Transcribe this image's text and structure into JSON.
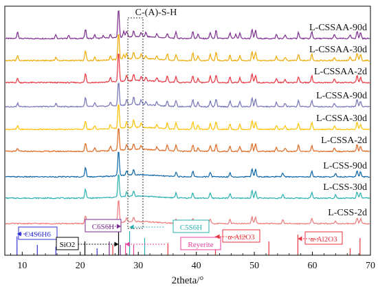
{
  "chart_data": {
    "type": "line",
    "title": "",
    "xlabel": "2theta/°",
    "ylabel": "",
    "xlim": [
      7,
      70
    ],
    "x_ticks": [
      10,
      20,
      30,
      40,
      50,
      60,
      70
    ],
    "y_axis_visible": false,
    "grid": false,
    "annotation_top": "C-(A)-S-H",
    "csh_band": [
      28.2,
      30.8
    ],
    "series": [
      {
        "name": "L-CSSAA-90d",
        "color": "#7b2a8e",
        "peaks": [
          [
            9.2,
            10
          ],
          [
            15.8,
            6
          ],
          [
            18.0,
            5
          ],
          [
            20.9,
            14
          ],
          [
            22.5,
            5
          ],
          [
            24.0,
            4
          ],
          [
            25.2,
            5
          ],
          [
            26.6,
            42
          ],
          [
            27.5,
            8
          ],
          [
            28.0,
            9
          ],
          [
            29.2,
            8
          ],
          [
            30.5,
            6
          ],
          [
            31.3,
            6
          ],
          [
            33.2,
            5
          ],
          [
            35.0,
            7
          ],
          [
            36.5,
            9
          ],
          [
            39.4,
            11
          ],
          [
            40.3,
            7
          ],
          [
            42.4,
            9
          ],
          [
            43.4,
            12
          ],
          [
            45.8,
            8
          ],
          [
            46.8,
            6
          ],
          [
            47.5,
            8
          ],
          [
            49.6,
            14
          ],
          [
            50.2,
            12
          ],
          [
            53.8,
            6
          ],
          [
            55.3,
            5
          ],
          [
            57.6,
            9
          ],
          [
            59.9,
            10
          ],
          [
            63.8,
            6
          ],
          [
            66.5,
            5
          ],
          [
            67.7,
            11
          ],
          [
            68.3,
            9
          ]
        ]
      },
      {
        "name": "L-CSSAA-30d",
        "color": "#f0a800",
        "peaks": [
          [
            9.2,
            7
          ],
          [
            15.8,
            5
          ],
          [
            20.9,
            14
          ],
          [
            22.5,
            5
          ],
          [
            25.2,
            6
          ],
          [
            26.6,
            40
          ],
          [
            27.5,
            7
          ],
          [
            28.0,
            8
          ],
          [
            29.2,
            9
          ],
          [
            30.5,
            7
          ],
          [
            31.3,
            5
          ],
          [
            33.2,
            5
          ],
          [
            35.0,
            9
          ],
          [
            36.5,
            9
          ],
          [
            39.4,
            11
          ],
          [
            40.3,
            7
          ],
          [
            42.4,
            9
          ],
          [
            43.4,
            12
          ],
          [
            45.8,
            8
          ],
          [
            47.5,
            7
          ],
          [
            49.6,
            13
          ],
          [
            50.2,
            12
          ],
          [
            53.8,
            6
          ],
          [
            55.3,
            5
          ],
          [
            57.6,
            9
          ],
          [
            59.9,
            10
          ],
          [
            63.8,
            5
          ],
          [
            66.5,
            5
          ],
          [
            67.7,
            11
          ],
          [
            68.3,
            9
          ]
        ]
      },
      {
        "name": "L-CSSAA-2d",
        "color": "#e8323c",
        "peaks": [
          [
            9.2,
            6
          ],
          [
            20.9,
            13
          ],
          [
            25.2,
            6
          ],
          [
            26.6,
            44
          ],
          [
            28.0,
            8
          ],
          [
            29.2,
            10
          ],
          [
            30.5,
            6
          ],
          [
            31.3,
            5
          ],
          [
            33.2,
            5
          ],
          [
            35.0,
            9
          ],
          [
            36.5,
            9
          ],
          [
            39.4,
            10
          ],
          [
            40.3,
            6
          ],
          [
            42.4,
            9
          ],
          [
            43.4,
            11
          ],
          [
            45.8,
            8
          ],
          [
            47.5,
            7
          ],
          [
            49.6,
            13
          ],
          [
            50.2,
            11
          ],
          [
            53.8,
            6
          ],
          [
            55.3,
            5
          ],
          [
            57.6,
            9
          ],
          [
            59.9,
            10
          ],
          [
            63.8,
            5
          ],
          [
            67.7,
            11
          ],
          [
            68.3,
            8
          ]
        ]
      },
      {
        "name": "L-CSSA-90d",
        "color": "#7272b8",
        "peaks": [
          [
            9.2,
            5
          ],
          [
            15.8,
            5
          ],
          [
            20.9,
            13
          ],
          [
            22.5,
            5
          ],
          [
            25.2,
            6
          ],
          [
            26.6,
            36
          ],
          [
            28.0,
            8
          ],
          [
            29.2,
            12
          ],
          [
            30.5,
            7
          ],
          [
            31.3,
            5
          ],
          [
            33.2,
            5
          ],
          [
            35.0,
            8
          ],
          [
            36.5,
            9
          ],
          [
            39.4,
            11
          ],
          [
            40.3,
            7
          ],
          [
            42.4,
            8
          ],
          [
            43.4,
            11
          ],
          [
            45.8,
            8
          ],
          [
            47.5,
            7
          ],
          [
            49.6,
            13
          ],
          [
            50.2,
            11
          ],
          [
            53.8,
            6
          ],
          [
            55.3,
            5
          ],
          [
            57.6,
            9
          ],
          [
            59.9,
            9
          ],
          [
            63.8,
            5
          ],
          [
            67.7,
            11
          ],
          [
            68.3,
            8
          ]
        ]
      },
      {
        "name": "L-CSSA-30d",
        "color": "#ffc000",
        "peaks": [
          [
            9.2,
            5
          ],
          [
            20.9,
            13
          ],
          [
            22.5,
            5
          ],
          [
            25.2,
            6
          ],
          [
            26.6,
            38
          ],
          [
            28.0,
            8
          ],
          [
            29.2,
            11
          ],
          [
            30.5,
            7
          ],
          [
            33.2,
            5
          ],
          [
            35.0,
            9
          ],
          [
            36.5,
            9
          ],
          [
            39.4,
            11
          ],
          [
            40.3,
            7
          ],
          [
            42.4,
            8
          ],
          [
            43.4,
            11
          ],
          [
            45.8,
            8
          ],
          [
            47.5,
            7
          ],
          [
            49.6,
            13
          ],
          [
            50.2,
            11
          ],
          [
            53.8,
            6
          ],
          [
            55.3,
            5
          ],
          [
            57.6,
            9
          ],
          [
            59.9,
            10
          ],
          [
            63.8,
            5
          ],
          [
            67.7,
            11
          ],
          [
            68.3,
            8
          ]
        ]
      },
      {
        "name": "L-CSSA-2d",
        "color": "#e0661e",
        "peaks": [
          [
            9.2,
            4
          ],
          [
            20.9,
            12
          ],
          [
            22.5,
            5
          ],
          [
            25.2,
            6
          ],
          [
            26.6,
            34
          ],
          [
            28.0,
            8
          ],
          [
            29.2,
            9
          ],
          [
            30.5,
            6
          ],
          [
            33.2,
            5
          ],
          [
            35.0,
            9
          ],
          [
            36.5,
            9
          ],
          [
            39.4,
            10
          ],
          [
            40.3,
            6
          ],
          [
            42.4,
            8
          ],
          [
            43.4,
            11
          ],
          [
            45.8,
            8
          ],
          [
            47.5,
            7
          ],
          [
            49.6,
            12
          ],
          [
            50.2,
            11
          ],
          [
            53.8,
            6
          ],
          [
            55.3,
            5
          ],
          [
            57.6,
            9
          ],
          [
            59.9,
            9
          ],
          [
            63.8,
            5
          ],
          [
            67.7,
            10
          ],
          [
            68.3,
            8
          ]
        ]
      },
      {
        "name": "L-CSS-90d",
        "color": "#0a64a8",
        "peaks": [
          [
            20.9,
            14
          ],
          [
            26.6,
            38
          ],
          [
            28.0,
            7
          ],
          [
            29.2,
            8
          ],
          [
            36.5,
            7
          ],
          [
            39.4,
            8
          ],
          [
            42.4,
            7
          ],
          [
            45.8,
            6
          ],
          [
            49.6,
            12
          ],
          [
            50.2,
            11
          ],
          [
            54.9,
            6
          ],
          [
            59.9,
            8
          ],
          [
            64.0,
            5
          ],
          [
            67.7,
            9
          ],
          [
            68.3,
            8
          ]
        ]
      },
      {
        "name": "L-CSS-30d",
        "color": "#27b0b0",
        "peaks": [
          [
            20.9,
            13
          ],
          [
            26.6,
            35
          ],
          [
            28.0,
            7
          ],
          [
            29.2,
            8
          ],
          [
            36.5,
            7
          ],
          [
            39.4,
            8
          ],
          [
            42.4,
            7
          ],
          [
            45.8,
            6
          ],
          [
            49.6,
            11
          ],
          [
            50.2,
            10
          ],
          [
            54.9,
            5
          ],
          [
            59.9,
            8
          ],
          [
            64.0,
            5
          ],
          [
            67.7,
            9
          ],
          [
            68.3,
            8
          ]
        ]
      },
      {
        "name": "L-CSS-2d",
        "color": "#f07878",
        "peaks": [
          [
            20.9,
            12
          ],
          [
            26.6,
            34
          ],
          [
            28.0,
            6
          ],
          [
            29.2,
            6
          ],
          [
            36.5,
            6
          ],
          [
            39.4,
            7
          ],
          [
            42.4,
            6
          ],
          [
            45.8,
            6
          ],
          [
            49.6,
            10
          ],
          [
            50.2,
            9
          ],
          [
            54.9,
            5
          ],
          [
            59.9,
            8
          ],
          [
            64.0,
            4
          ],
          [
            67.7,
            9
          ],
          [
            68.3,
            7
          ]
        ]
      }
    ],
    "reference_lines": [
      {
        "x": 9.1,
        "color": "#3030d0",
        "height": 22
      },
      {
        "x": 15.8,
        "color": "#3030d0",
        "height": 10
      },
      {
        "x": 22.9,
        "color": "#3030d0",
        "height": 8
      },
      {
        "x": 12.6,
        "color": "#3030d0",
        "height": 12
      },
      {
        "x": 20.8,
        "color": "#000000",
        "height": 16
      },
      {
        "x": 26.6,
        "color": "#000000",
        "height": 30
      },
      {
        "x": 25.0,
        "color": "#7b2a8e",
        "height": 16
      },
      {
        "x": 26.9,
        "color": "#7b2a8e",
        "height": 12
      },
      {
        "x": 28.5,
        "color": "#27b0b0",
        "height": 28
      },
      {
        "x": 31.1,
        "color": "#27b0b0",
        "height": 20
      },
      {
        "x": 27.8,
        "color": "#e83c9a",
        "height": 14
      },
      {
        "x": 29.2,
        "color": "#e83c9a",
        "height": 12
      },
      {
        "x": 25.6,
        "color": "#e8323c",
        "height": 12
      },
      {
        "x": 35.1,
        "color": "#e8323c",
        "height": 14
      },
      {
        "x": 43.3,
        "color": "#e8323c",
        "height": 22
      },
      {
        "x": 52.5,
        "color": "#e8323c",
        "height": 16
      },
      {
        "x": 57.5,
        "color": "#e8323c",
        "height": 24
      },
      {
        "x": 66.5,
        "color": "#e8323c",
        "height": 8
      },
      {
        "x": 68.2,
        "color": "#e8323c",
        "height": 20
      }
    ],
    "phase_labels": [
      {
        "text": "C4S6H6",
        "color": "#3030d0",
        "arrow_from": 12.8,
        "arrow_to": 9.1,
        "dir": "left"
      },
      {
        "text": "C6S6H",
        "color": "#7b2a8e",
        "arrow_from": 24.5,
        "arrow_to": 27.0,
        "dir": "right"
      },
      {
        "text": "C5S6H",
        "color": "#27b0b0",
        "arrow_from": 34.4,
        "arrow_to": 28.5,
        "dir": "left"
      },
      {
        "text": "SiO2",
        "color": "#000000",
        "arrow_from": 19.6,
        "arrow_to": 26.6,
        "dir": "right"
      },
      {
        "text": "Reyerite",
        "color": "#e83c9a",
        "arrow_from": 34.6,
        "arrow_to": 27.8,
        "dir": "left"
      },
      {
        "text": "α-Al2O3",
        "color": "#e8323c",
        "arrow_from": 48.6,
        "arrow_to": 43.3,
        "dir": "left"
      },
      {
        "text": "α-Al2O3",
        "color": "#e8323c",
        "arrow_from": 61.0,
        "arrow_to": 57.5,
        "dir": "left"
      }
    ]
  }
}
